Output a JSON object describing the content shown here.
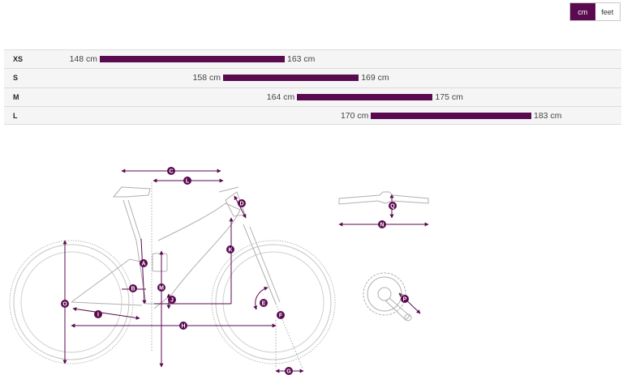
{
  "units": {
    "cm": "cm",
    "feet": "feet",
    "active": "cm"
  },
  "colors": {
    "accent": "#5a0a4f",
    "row_background": "#f5f5f5"
  },
  "size_rows": [
    {
      "size": "XS",
      "min": 148,
      "max": 163,
      "min_label": "148 cm",
      "max_label": "163 cm"
    },
    {
      "size": "S",
      "min": 158,
      "max": 169,
      "min_label": "158 cm",
      "max_label": "169 cm"
    },
    {
      "size": "M",
      "min": 164,
      "max": 175,
      "min_label": "164 cm",
      "max_label": "175 cm"
    },
    {
      "size": "L",
      "min": 170,
      "max": 183,
      "min_label": "170 cm",
      "max_label": "183 cm"
    }
  ],
  "geometry_markers": [
    "A",
    "B",
    "C",
    "D",
    "E",
    "F",
    "G",
    "H",
    "I",
    "J",
    "K",
    "L",
    "M",
    "N",
    "O",
    "P",
    "Q"
  ]
}
